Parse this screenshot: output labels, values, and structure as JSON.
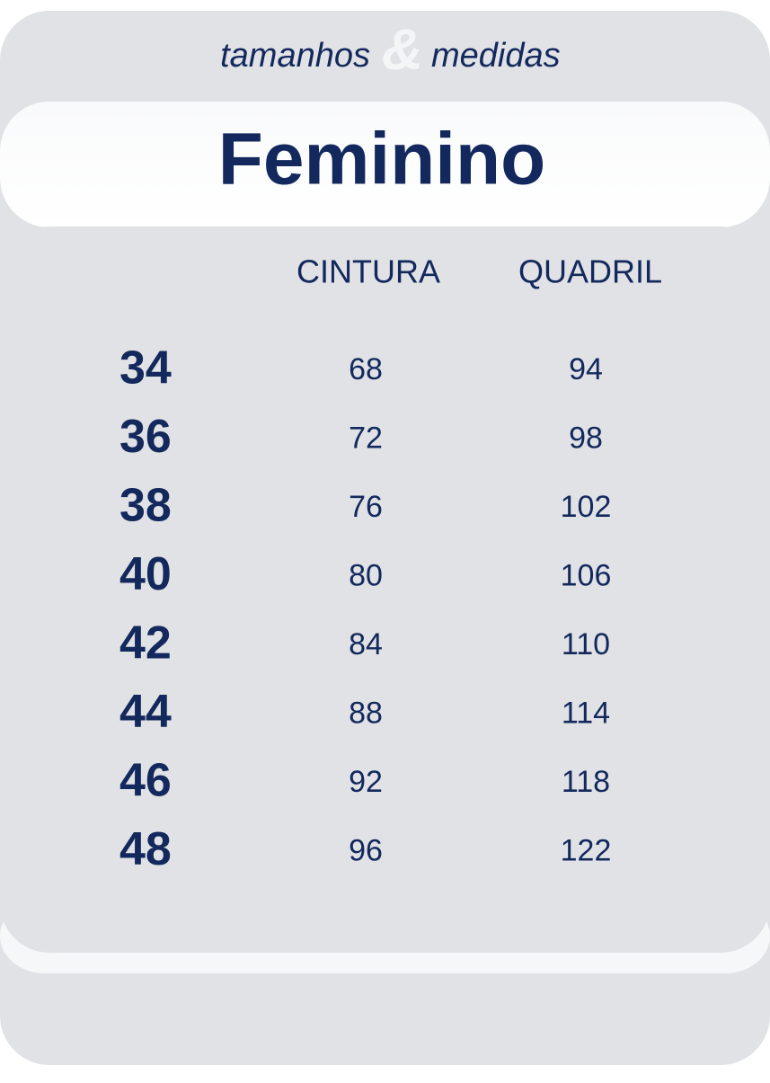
{
  "header": {
    "title_left": "tamanhos",
    "ampersand": "&",
    "title_right": "medidas"
  },
  "title": "Feminino",
  "table": {
    "columns": [
      "CINTURA",
      "QUADRIL"
    ],
    "rows": [
      [
        "34",
        "68",
        "94"
      ],
      [
        "36",
        "72",
        "98"
      ],
      [
        "38",
        "76",
        "102"
      ],
      [
        "40",
        "80",
        "106"
      ],
      [
        "42",
        "84",
        "110"
      ],
      [
        "44",
        "88",
        "114"
      ],
      [
        "46",
        "92",
        "118"
      ],
      [
        "48",
        "96",
        "122"
      ]
    ]
  }
}
